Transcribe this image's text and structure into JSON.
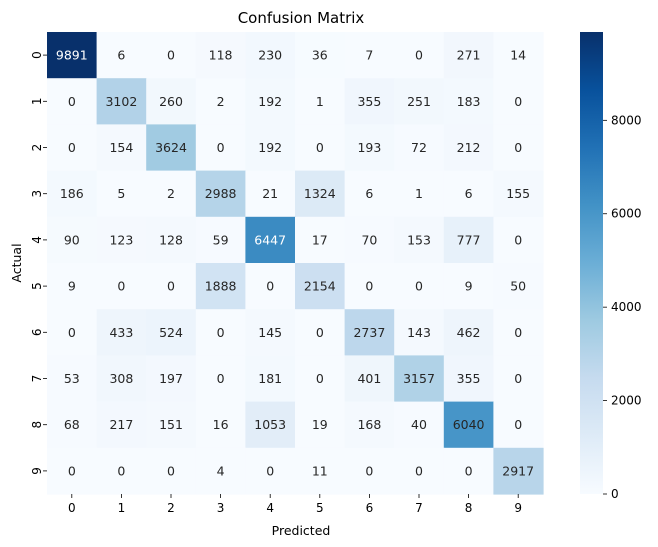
{
  "chart_data": {
    "type": "heatmap",
    "title": "Confusion Matrix",
    "xlabel": "Predicted",
    "ylabel": "Actual",
    "x_categories": [
      "0",
      "1",
      "2",
      "3",
      "4",
      "5",
      "6",
      "7",
      "8",
      "9"
    ],
    "y_categories": [
      "0",
      "1",
      "2",
      "3",
      "4",
      "5",
      "6",
      "7",
      "8",
      "9"
    ],
    "values": [
      [
        9891,
        6,
        0,
        118,
        230,
        36,
        7,
        0,
        271,
        14
      ],
      [
        0,
        3102,
        260,
        2,
        192,
        1,
        355,
        251,
        183,
        0
      ],
      [
        0,
        154,
        3624,
        0,
        192,
        0,
        193,
        72,
        212,
        0
      ],
      [
        186,
        5,
        2,
        2988,
        21,
        1324,
        6,
        1,
        6,
        155
      ],
      [
        90,
        123,
        128,
        59,
        6447,
        17,
        70,
        153,
        777,
        0
      ],
      [
        9,
        0,
        0,
        1888,
        0,
        2154,
        0,
        0,
        9,
        50
      ],
      [
        0,
        433,
        524,
        0,
        145,
        0,
        2737,
        143,
        462,
        0
      ],
      [
        53,
        308,
        197,
        0,
        181,
        0,
        401,
        3157,
        355,
        0
      ],
      [
        68,
        217,
        151,
        16,
        1053,
        19,
        168,
        40,
        6040,
        0
      ],
      [
        0,
        0,
        0,
        4,
        0,
        11,
        0,
        0,
        0,
        2917
      ]
    ],
    "colormap": "Blues",
    "color_range": [
      0,
      9891
    ],
    "colorbar_ticks": [
      0,
      2000,
      4000,
      6000,
      8000
    ],
    "colorbar_tick_labels": [
      "0",
      "2000",
      "4000",
      "6000",
      "8000"
    ],
    "annotations": true,
    "grid": false,
    "legend": "colorbar-right"
  }
}
